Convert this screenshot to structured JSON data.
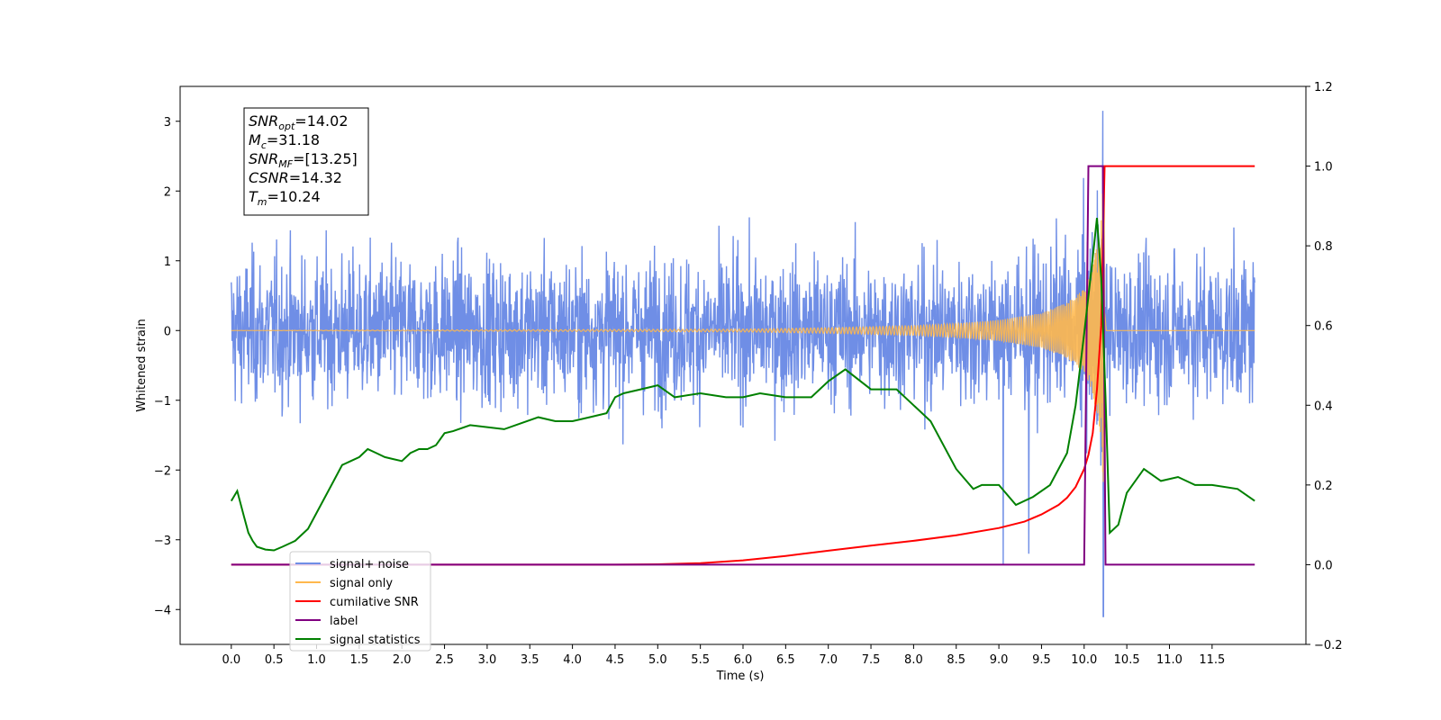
{
  "chart_data": {
    "type": "line",
    "xlabel": "Time (s)",
    "ylabel_left": "Whitened strain",
    "xlim": [
      -0.6,
      12.6
    ],
    "ylim_left": [
      -4.5,
      3.5
    ],
    "ylim_right": [
      -0.2,
      1.2
    ],
    "x_ticks": [
      "0.0",
      "0.5",
      "1.0",
      "1.5",
      "2.0",
      "2.5",
      "3.0",
      "3.5",
      "4.0",
      "4.5",
      "5.0",
      "5.5",
      "6.0",
      "6.5",
      "7.0",
      "7.5",
      "8.0",
      "8.5",
      "9.0",
      "9.5",
      "10.0",
      "10.5",
      "11.0",
      "11.5"
    ],
    "y_ticks_left": [
      "3",
      "2",
      "1",
      "0",
      "−1",
      "−2",
      "−3",
      "−4"
    ],
    "y_ticks_right": [
      "1.2",
      "1.0",
      "0.8",
      "0.6",
      "0.4",
      "0.2",
      "0.0",
      "−0.2"
    ],
    "grid": false,
    "legend_position": "lower-left",
    "annotation": [
      {
        "main": "SNR",
        "sub": "opt",
        "rest": "=14.02"
      },
      {
        "main": "M",
        "sub": "c",
        "rest": "=31.18"
      },
      {
        "main": "SNR",
        "sub": "MF",
        "rest": "=[13.25]"
      },
      {
        "main": "CSNR",
        "sub": "",
        "rest": "=14.32"
      },
      {
        "main": "T",
        "sub": "m",
        "rest": "=10.24"
      }
    ],
    "series": [
      {
        "name": "signal+ noise",
        "axis": "left",
        "color": "#6f8ee6",
        "description": "whitened noise plus signal, x 0.0-12.0, values mostly within -2.5..2.5, peak 3.15 near x=10.22, min -4.1 near x=10.22"
      },
      {
        "name": "signal only",
        "axis": "left",
        "color": "#ffb84d",
        "description": "chirp signal with growing amplitude, peak ~2.6 at x=10.22",
        "x": [
          0.0,
          6.0,
          7.0,
          8.0,
          8.5,
          9.0,
          9.5,
          9.8,
          10.0,
          10.1,
          10.2,
          10.24,
          10.26,
          12.0
        ],
        "amplitude": [
          0.0,
          0.02,
          0.04,
          0.07,
          0.1,
          0.15,
          0.25,
          0.4,
          0.6,
          0.9,
          1.6,
          2.6,
          0.0,
          0.0
        ]
      },
      {
        "name": "cumilative SNR",
        "axis": "right",
        "color": "#ff0000",
        "x": [
          0.0,
          4.5,
          5.0,
          5.5,
          6.0,
          6.5,
          7.0,
          7.5,
          8.0,
          8.5,
          9.0,
          9.3,
          9.5,
          9.7,
          9.8,
          9.9,
          10.0,
          10.05,
          10.1,
          10.15,
          10.2,
          10.22,
          10.24,
          12.0
        ],
        "y": [
          0.0,
          0.0,
          0.001,
          0.004,
          0.011,
          0.022,
          0.035,
          0.048,
          0.06,
          0.074,
          0.092,
          0.108,
          0.126,
          0.15,
          0.168,
          0.195,
          0.24,
          0.275,
          0.33,
          0.44,
          0.6,
          0.8,
          1.0,
          1.0
        ]
      },
      {
        "name": "label",
        "axis": "right",
        "color": "#800080",
        "x": [
          0.0,
          10.0,
          10.05,
          10.22,
          10.25,
          12.0
        ],
        "y": [
          0.0,
          0.0,
          1.0,
          1.0,
          0.0,
          0.0
        ]
      },
      {
        "name": "signal statistics",
        "axis": "right",
        "color": "#008000",
        "x": [
          0.0,
          0.07,
          0.15,
          0.2,
          0.25,
          0.3,
          0.4,
          0.5,
          0.6,
          0.7,
          0.75,
          0.8,
          0.9,
          1.0,
          1.1,
          1.2,
          1.3,
          1.4,
          1.5,
          1.6,
          1.7,
          1.8,
          1.9,
          2.0,
          2.1,
          2.2,
          2.3,
          2.4,
          2.5,
          2.6,
          2.8,
          3.0,
          3.2,
          3.4,
          3.6,
          3.8,
          4.0,
          4.2,
          4.4,
          4.5,
          4.6,
          4.8,
          5.0,
          5.2,
          5.5,
          5.8,
          6.0,
          6.2,
          6.5,
          6.8,
          7.0,
          7.2,
          7.5,
          7.8,
          8.0,
          8.2,
          8.5,
          8.7,
          8.8,
          9.0,
          9.2,
          9.4,
          9.6,
          9.8,
          9.9,
          10.0,
          10.1,
          10.15,
          10.2,
          10.25,
          10.3,
          10.4,
          10.5,
          10.7,
          10.9,
          11.1,
          11.3,
          11.5,
          11.8,
          12.0
        ],
        "y": [
          0.16,
          0.185,
          0.12,
          0.08,
          0.06,
          0.045,
          0.038,
          0.036,
          0.045,
          0.055,
          0.06,
          0.07,
          0.09,
          0.13,
          0.17,
          0.21,
          0.25,
          0.26,
          0.27,
          0.29,
          0.28,
          0.27,
          0.265,
          0.26,
          0.28,
          0.29,
          0.29,
          0.3,
          0.33,
          0.335,
          0.35,
          0.345,
          0.34,
          0.355,
          0.37,
          0.36,
          0.36,
          0.37,
          0.38,
          0.42,
          0.43,
          0.44,
          0.45,
          0.42,
          0.43,
          0.42,
          0.42,
          0.43,
          0.42,
          0.42,
          0.46,
          0.49,
          0.44,
          0.44,
          0.4,
          0.36,
          0.24,
          0.19,
          0.2,
          0.2,
          0.15,
          0.17,
          0.2,
          0.28,
          0.4,
          0.58,
          0.77,
          0.87,
          0.72,
          0.42,
          0.08,
          0.1,
          0.18,
          0.24,
          0.21,
          0.22,
          0.2,
          0.2,
          0.19,
          0.16
        ]
      }
    ]
  }
}
